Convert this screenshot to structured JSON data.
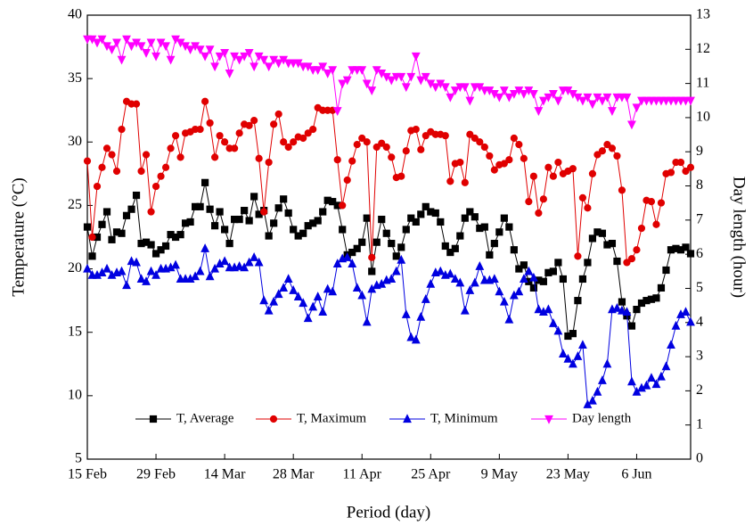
{
  "chart_data": {
    "type": "line",
    "xlabel": "Period (day)",
    "ylabel": "Temperature (°C)",
    "y2label": "Day length (hour)",
    "x": [
      0,
      1,
      2,
      3,
      4,
      5,
      6,
      7,
      8,
      9,
      10,
      11,
      12,
      13,
      14,
      15,
      16,
      17,
      18,
      19,
      20,
      21,
      22,
      23,
      24,
      25,
      26,
      27,
      28,
      29,
      30,
      31,
      32,
      33,
      34,
      35,
      36,
      37,
      38,
      39,
      40,
      41,
      42,
      43,
      44,
      45,
      46,
      47,
      48,
      49,
      50,
      51,
      52,
      53,
      54,
      55,
      56,
      57,
      58,
      59,
      60,
      61,
      62,
      63,
      64,
      65,
      66,
      67,
      68,
      69,
      70,
      71,
      72,
      73,
      74,
      75,
      76,
      77,
      78,
      79,
      80,
      81,
      82,
      83,
      84,
      85,
      86,
      87,
      88,
      89,
      90,
      91,
      92,
      93,
      94,
      95,
      96,
      97,
      98,
      99,
      100,
      101,
      102,
      103,
      104,
      105,
      106,
      107,
      108,
      109,
      110,
      111,
      112,
      113,
      114,
      115,
      116,
      117,
      118,
      119,
      120,
      121,
      122,
      123
    ],
    "xlim": [
      0,
      123
    ],
    "xticks": [
      {
        "value": 0,
        "label": "15 Feb"
      },
      {
        "value": 14,
        "label": "29 Feb"
      },
      {
        "value": 28,
        "label": "14 Mar"
      },
      {
        "value": 42,
        "label": "28 Mar"
      },
      {
        "value": 56,
        "label": "11 Apr"
      },
      {
        "value": 70,
        "label": "25 Apr"
      },
      {
        "value": 84,
        "label": "9 May"
      },
      {
        "value": 98,
        "label": "23 May"
      },
      {
        "value": 112,
        "label": "6 Jun"
      }
    ],
    "ylim": [
      5,
      40
    ],
    "yticks": [
      5,
      10,
      15,
      20,
      25,
      30,
      35,
      40
    ],
    "y2lim": [
      0,
      13
    ],
    "y2ticks": [
      0,
      1,
      2,
      3,
      4,
      5,
      6,
      7,
      8,
      9,
      10,
      11,
      12,
      13
    ],
    "legend": "bottom",
    "series": [
      {
        "name": "T, Average",
        "color": "#000000",
        "marker": "square",
        "values": [
          23.3,
          21,
          22.5,
          23.5,
          24.5,
          22.3,
          22.9,
          22.8,
          24.2,
          24.7,
          25.8,
          22,
          22.1,
          21.9,
          21.2,
          21.5,
          21.8,
          22.7,
          22.5,
          22.7,
          23.6,
          23.7,
          24.9,
          24.9,
          26.8,
          24.7,
          23.4,
          24.5,
          23.1,
          22,
          23.9,
          23.9,
          24.6,
          23.8,
          25.7,
          24.3,
          24.6,
          22.6,
          23.6,
          24.8,
          25.5,
          24.4,
          23.1,
          22.6,
          22.8,
          23.4,
          23.6,
          23.8,
          24.5,
          25.4,
          25.3,
          25,
          23.1,
          21.1,
          21.3,
          21.6,
          22.1,
          24,
          19.8,
          22.1,
          23.9,
          22.8,
          22,
          21,
          21.7,
          23.1,
          24,
          23.7,
          24.3,
          24.9,
          24.5,
          24.4,
          23.7,
          21.8,
          21.3,
          21.6,
          22.6,
          24,
          24.5,
          24.1,
          23.2,
          23.3,
          21.1,
          22,
          22.9,
          24,
          23.3,
          21.5,
          20,
          20.3,
          19,
          18.5,
          19.1,
          19,
          19.7,
          19.8,
          20.5,
          19.2,
          14.7,
          14.9,
          17.5,
          19.2,
          20.5,
          22.4,
          22.9,
          22.8,
          21.9,
          22,
          20.6,
          17.4,
          16.3,
          15.5,
          16.8,
          17.3,
          17.5,
          17.6,
          17.7,
          18.5,
          19.9,
          21.5,
          21.6,
          21.5,
          21.7,
          21.2
        ]
      },
      {
        "name": "T, Maximum",
        "color": "#e00000",
        "marker": "circle",
        "values": [
          28.5,
          22.5,
          26.5,
          28,
          29.5,
          29,
          27.7,
          31,
          33.2,
          33,
          33,
          27.7,
          29,
          24.5,
          26.5,
          27.3,
          28,
          29.5,
          30.5,
          28.8,
          30.7,
          30.8,
          31,
          31,
          33.2,
          31.5,
          28.8,
          30.5,
          30,
          29.5,
          29.5,
          30.7,
          31.4,
          31.3,
          31.7,
          28.7,
          24.5,
          28.4,
          31.4,
          32.2,
          30,
          29.6,
          30,
          30.4,
          30.3,
          30.7,
          31,
          32.7,
          32.5,
          32.5,
          32.5,
          28.6,
          25,
          27,
          28.5,
          29.8,
          30.3,
          30,
          20.9,
          29.6,
          29.9,
          29.6,
          28.8,
          27.2,
          27.3,
          29.3,
          30.9,
          31,
          29.4,
          30.5,
          30.8,
          30.6,
          30.6,
          30.5,
          26.9,
          28.3,
          28.4,
          26.8,
          30.6,
          30.3,
          30,
          29.6,
          28.9,
          27.8,
          28.2,
          28.3,
          28.6,
          30.3,
          29.8,
          28.7,
          25.3,
          27.3,
          24.4,
          25.5,
          28,
          27.3,
          28.4,
          27.5,
          27.7,
          27.9,
          21,
          25.6,
          24.8,
          27.5,
          29,
          29.3,
          29.8,
          29.5,
          28.9,
          26.2,
          20.5,
          20.8,
          21.5,
          23.2,
          25.4,
          25.3,
          23.5,
          25.2,
          27.5,
          27.6,
          28.4,
          28.4,
          27.7,
          28
        ]
      },
      {
        "name": "T, Minimum",
        "color": "#0000e0",
        "marker": "triangle-up",
        "values": [
          20,
          19.5,
          19.5,
          19.7,
          20,
          19.5,
          19.7,
          19.8,
          18.7,
          20.6,
          20.5,
          19.2,
          19,
          19.8,
          19.5,
          20,
          20,
          20.1,
          20.3,
          19.2,
          19.2,
          19.2,
          19.4,
          19.8,
          21.6,
          19.4,
          20,
          20.4,
          20.6,
          20.1,
          20.1,
          20.2,
          20.1,
          20.5,
          20.9,
          20.5,
          17.5,
          16.7,
          17.4,
          18,
          18.5,
          19.2,
          18.3,
          17.8,
          17.3,
          16.1,
          17,
          17.8,
          16.6,
          18.4,
          18.2,
          20.4,
          20.8,
          20.9,
          20.4,
          18.5,
          17.9,
          15.8,
          18.4,
          18.7,
          18.8,
          19.1,
          19.2,
          19.8,
          20.7,
          16.4,
          14.6,
          14.4,
          16.2,
          17.6,
          18.8,
          19.7,
          19.8,
          19.5,
          19.6,
          19.2,
          18.9,
          16.7,
          18.3,
          18.9,
          20.2,
          19.1,
          19.1,
          19.2,
          18.2,
          17.4,
          16,
          17.9,
          18.2,
          19.2,
          19.8,
          19.3,
          16.8,
          16.6,
          16.8,
          15.7,
          15.1,
          13.3,
          12.9,
          12.5,
          13.1,
          14,
          9.3,
          9.6,
          10.3,
          11.2,
          12.5,
          16.8,
          16.9,
          16.7,
          16.6,
          11.1,
          10.3,
          10.6,
          10.8,
          11.4,
          10.9,
          11.5,
          12.3,
          14,
          15.5,
          16.4,
          16.6,
          15.8
        ]
      },
      {
        "name": "Day length",
        "color": "#ff00ff",
        "marker": "triangle-down",
        "axis": "y2",
        "values": [
          12.3,
          12.3,
          12.2,
          12.3,
          12.1,
          12,
          12.2,
          11.7,
          12.3,
          12.1,
          12.2,
          12.1,
          11.9,
          12.2,
          11.8,
          12.2,
          12.1,
          11.7,
          12.3,
          12.2,
          12.1,
          12,
          12.1,
          12,
          11.8,
          12,
          11.5,
          11.8,
          11.9,
          11.3,
          11.8,
          11.7,
          11.8,
          11.9,
          11.5,
          11.8,
          11.7,
          11.5,
          11.7,
          11.6,
          11.7,
          11.6,
          11.6,
          11.6,
          11.5,
          11.5,
          11.4,
          11.4,
          11.5,
          11.3,
          11.4,
          10.2,
          11,
          11.1,
          11.4,
          11.4,
          11.4,
          11,
          10.8,
          11.4,
          11.3,
          11.2,
          11.1,
          11.2,
          11.2,
          10.9,
          11.2,
          11.8,
          11.1,
          11.2,
          11,
          10.9,
          11,
          10.9,
          10.6,
          10.8,
          10.9,
          10.9,
          10.5,
          10.9,
          10.9,
          10.8,
          10.8,
          10.7,
          10.6,
          10.8,
          10.6,
          10.7,
          10.8,
          10.7,
          10.8,
          10.7,
          10.2,
          10.5,
          10.6,
          10.7,
          10.5,
          10.8,
          10.8,
          10.7,
          10.6,
          10.5,
          10.6,
          10.4,
          10.6,
          10.5,
          10.6,
          10.2,
          10.6,
          10.6,
          10.6,
          9.8,
          10.3,
          10.5,
          10.5,
          10.5,
          10.5,
          10.5,
          10.5,
          10.5,
          10.5,
          10.5,
          10.5,
          10.5
        ]
      }
    ]
  }
}
